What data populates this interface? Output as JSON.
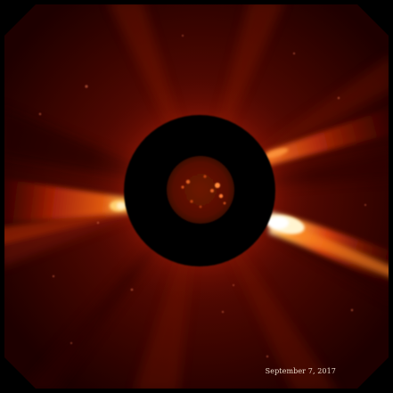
{
  "image": {
    "caption": "September 7, 2017",
    "colors": {
      "background": "#ffffff",
      "field_outer": "#1e0000",
      "field_inner": "#6a0a00",
      "occulter": "#000000",
      "sun_disk": "#5a0c02",
      "sun_active_region": "#ff8a3a",
      "streamer_bright": "#fff4d0",
      "streamer_mid": "#ff7a10",
      "corona_glow": "#c02a08"
    }
  }
}
